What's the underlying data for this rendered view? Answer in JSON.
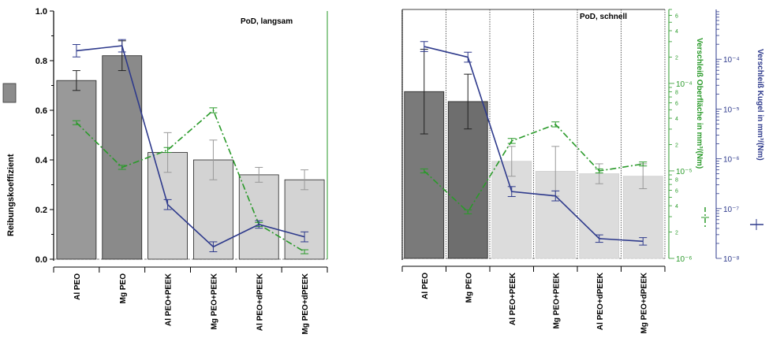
{
  "figure": {
    "shared_ylabel": "Reibungskoeffizient"
  },
  "chart_data": [
    {
      "type": "bar",
      "title": "PoD, langsam",
      "categories": [
        "Al PEO",
        "Mg PEO",
        "Al PEO+PEEK",
        "Mg PEO+PEEK",
        "Al PEO+dPEEK",
        "Mg PEO+dPEEK"
      ],
      "ylabel": "Reibungskoeffizient",
      "ylim": [
        0,
        1.0
      ],
      "yticks": [
        "0.0",
        "0.2",
        "0.4",
        "0.6",
        "0.8",
        "1.0"
      ],
      "colors": {
        "bar_dark": "#999999",
        "bar_darker": "#8a8a8a",
        "bar_light": "#d3d3d3",
        "kugel": "#2e3a8c",
        "oberflaeche": "#2a9a2a"
      },
      "series": [
        {
          "kind": "bar",
          "values": [
            0.72,
            0.82,
            0.43,
            0.4,
            0.34,
            0.32
          ],
          "errors": [
            0.04,
            0.06,
            0.08,
            0.08,
            0.03,
            0.04
          ]
        },
        {
          "kind": "line",
          "values": [
            0.84,
            0.86,
            0.22,
            0.05,
            0.14,
            0.09
          ],
          "errors": [
            0.025,
            0.025,
            0.02,
            0.02,
            0.015,
            0.02
          ]
        },
        {
          "kind": "dashdot",
          "values": [
            0.55,
            0.37,
            0.44,
            0.6,
            0.14,
            0.03
          ],
          "errors": [
            0.008,
            0.008,
            0.01,
            0.01,
            0.008,
            0.008
          ]
        }
      ]
    },
    {
      "type": "bar",
      "title": "PoD, schnell",
      "categories": [
        "Al PEO",
        "Mg PEO",
        "Al PEO+PEEK",
        "Mg PEO+PEEK",
        "Al PEO+dPEEK",
        "Mg PEO+dPEEK"
      ],
      "ylabel_right1": "Verschleiß Oberfläche in mm³/(Nm)",
      "ylabel_right2": "Verschleiß Kugel in mm³/(Nm)",
      "right1_axis": {
        "scale": "log",
        "range": [
          "1e-6",
          "7e-4"
        ],
        "decade_labels": [
          "10⁻⁶",
          "10⁻⁵",
          "10⁻⁴"
        ],
        "minor_labels": [
          "2",
          "4",
          "6",
          "8"
        ]
      },
      "right2_axis": {
        "scale": "log",
        "range": [
          "1e-8",
          "1e-3"
        ],
        "decade_labels": [
          "10⁻⁸",
          "10⁻⁷",
          "10⁻⁶",
          "10⁻⁵",
          "10⁻⁴"
        ]
      },
      "colors": {
        "bar_dark": "#7a7a7a",
        "bar_darker": "#6e6e6e",
        "bar_light": "#dcdcdc",
        "kugel": "#2e3a8c",
        "oberflaeche": "#2a9a2a"
      },
      "series": [
        {
          "kind": "bar",
          "values": [
            0.67,
            0.63,
            0.39,
            0.35,
            0.34,
            0.33
          ],
          "errors": [
            0.17,
            0.11,
            0.06,
            0.1,
            0.04,
            0.05
          ]
        },
        {
          "kind": "line",
          "axis": "Verschleiß Kugel in mm³/(Nm)",
          "values": [
            "1.8e-4",
            "1.1e-4",
            "2.2e-7",
            "1.8e-7",
            "2.5e-8",
            "2.2e-8"
          ],
          "errors": [
            0.02,
            0.02,
            0.02,
            0.02,
            0.015,
            0.015
          ]
        },
        {
          "kind": "dashdot",
          "axis": "Verschleiß Oberfläche in mm³/(Nm)",
          "values": [
            "1.0e-5",
            "3.4e-6",
            "2.2e-5",
            "3.4e-5",
            "1.0e-5",
            "1.2e-5"
          ],
          "errors": [
            0.008,
            0.008,
            0.01,
            0.01,
            0.008,
            0.008
          ]
        }
      ]
    }
  ]
}
